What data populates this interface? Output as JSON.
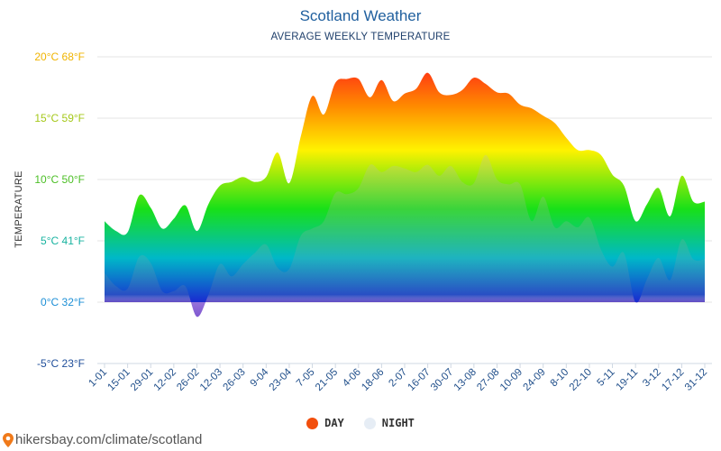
{
  "header": {
    "title": "Scotland Weather",
    "subtitle": "AVERAGE WEEKLY TEMPERATURE"
  },
  "legend": {
    "day_label": "DAY",
    "night_label": "NIGHT",
    "day_color": "#f24e0c",
    "night_color": "#e6edf5"
  },
  "footer": {
    "url": "hikersbay.com/climate/scotland",
    "pin_color": "#f07a1a"
  },
  "chart_data": {
    "type": "area",
    "title": "Scotland Weather",
    "subtitle": "AVERAGE WEEKLY TEMPERATURE",
    "xlabel": "",
    "ylabel": "TEMPERATURE",
    "ylim": [
      -5,
      20
    ],
    "grid": true,
    "legend_position": "bottom",
    "y_ticks": [
      {
        "value": 20,
        "label": "20°C 68°F",
        "color": "#f0b400"
      },
      {
        "value": 15,
        "label": "15°C 59°F",
        "color": "#a5c81a"
      },
      {
        "value": 10,
        "label": "10°C 50°F",
        "color": "#4cbf26"
      },
      {
        "value": 5,
        "label": "5°C 41°F",
        "color": "#18b3a0"
      },
      {
        "value": 0,
        "label": "0°C 32°F",
        "color": "#1c8fd6"
      },
      {
        "value": -5,
        "label": "-5°C 23°F",
        "color": "#1f4e9a"
      }
    ],
    "x_tick_labels": [
      "1-01",
      "15-01",
      "29-01",
      "12-02",
      "26-02",
      "12-03",
      "26-03",
      "9-04",
      "23-04",
      "7-05",
      "21-05",
      "4-06",
      "18-06",
      "2-07",
      "16-07",
      "30-07",
      "13-08",
      "27-08",
      "10-09",
      "24-09",
      "8-10",
      "22-10",
      "5-11",
      "19-11",
      "3-12",
      "17-12",
      "31-12"
    ],
    "series": [
      {
        "name": "DAY",
        "values": [
          6.6,
          5.8,
          5.7,
          8.7,
          7.7,
          6.0,
          6.8,
          7.9,
          5.8,
          8.0,
          9.5,
          9.8,
          10.2,
          9.8,
          10.2,
          12.2,
          9.7,
          13.5,
          16.8,
          15.3,
          17.9,
          18.2,
          18.2,
          16.7,
          18.1,
          16.4,
          17.0,
          17.4,
          18.7,
          17.1,
          16.9,
          17.3,
          18.3,
          17.8,
          17.1,
          17.0,
          16.1,
          15.8,
          15.2,
          14.6,
          13.4,
          12.4,
          12.4,
          12.0,
          10.4,
          9.5,
          6.6,
          8.0,
          9.3,
          7.0,
          10.3,
          8.2,
          8.2
        ]
      },
      {
        "name": "NIGHT",
        "values": [
          2.4,
          1.3,
          1.1,
          3.7,
          3.2,
          0.9,
          0.9,
          1.3,
          -1.2,
          0.6,
          3.1,
          2.1,
          3.1,
          4.0,
          4.7,
          2.8,
          2.7,
          5.4,
          6.0,
          6.6,
          8.9,
          8.8,
          9.3,
          11.2,
          10.6,
          11.1,
          10.9,
          10.6,
          11.2,
          10.3,
          11.1,
          9.8,
          9.7,
          12.0,
          10.0,
          9.6,
          9.6,
          6.6,
          8.6,
          6.1,
          6.6,
          6.1,
          6.9,
          4.3,
          2.9,
          4.0,
          0.0,
          1.9,
          3.6,
          1.8,
          5.1,
          3.5,
          3.5
        ]
      }
    ]
  }
}
